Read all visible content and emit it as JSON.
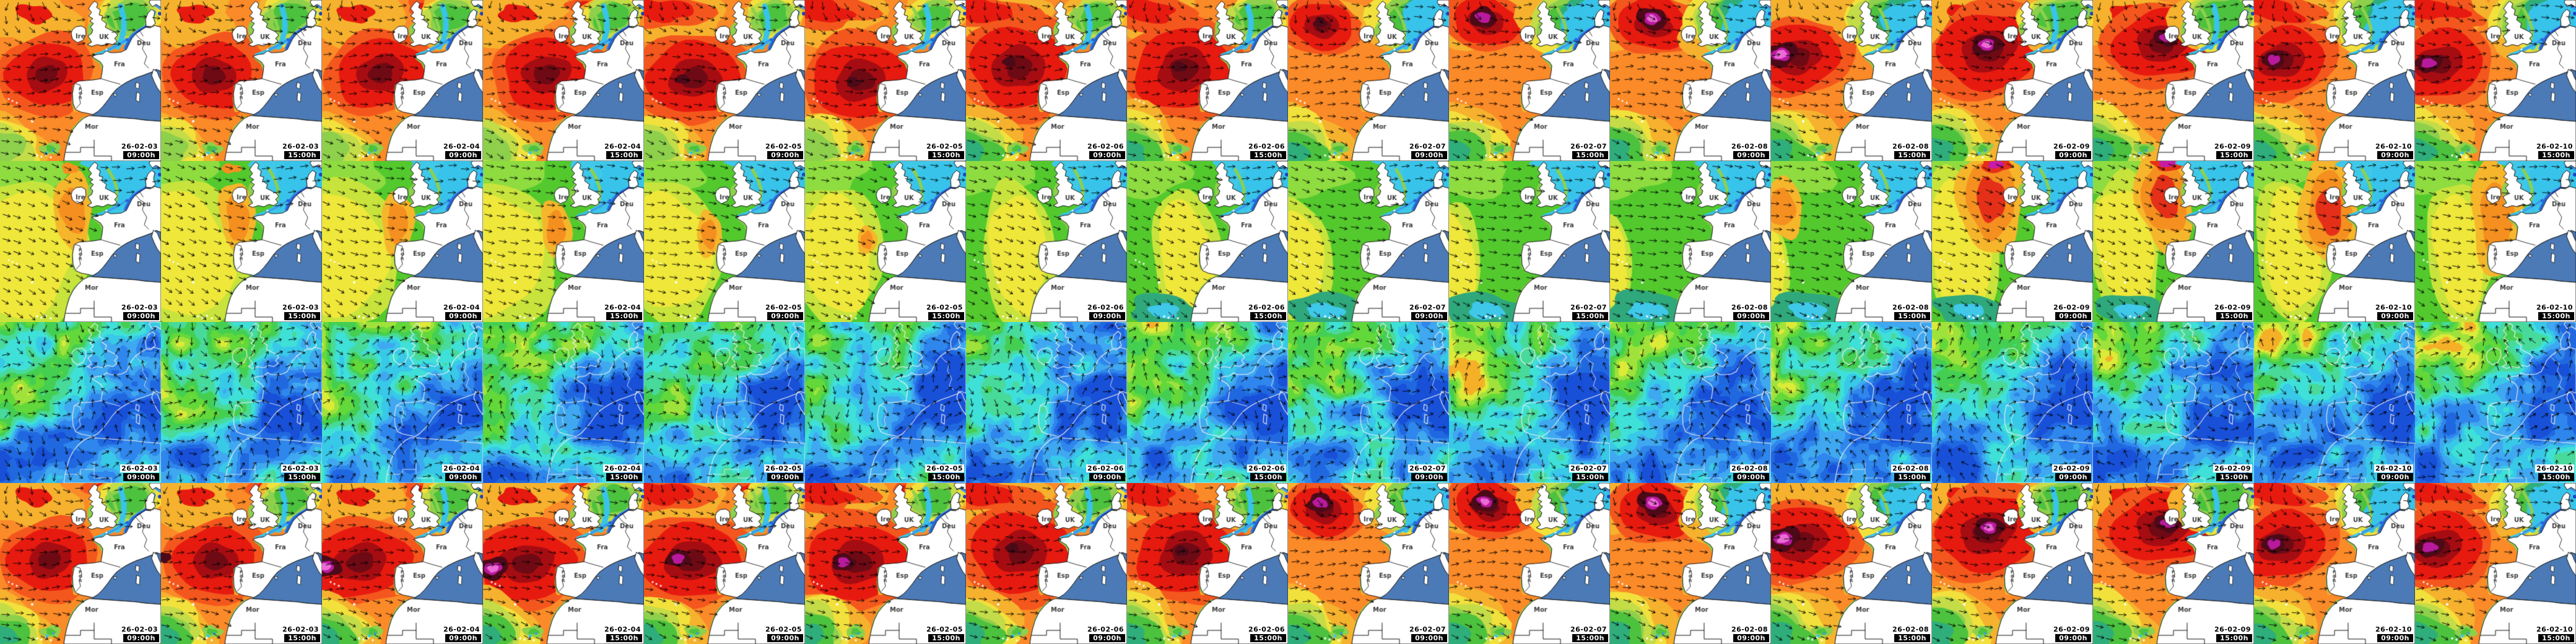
{
  "grid": {
    "tile_size": 260,
    "columns": [
      {
        "date": "26-02-03",
        "time": "09:00h"
      },
      {
        "date": "26-02-03",
        "time": "15:00h"
      },
      {
        "date": "26-02-04",
        "time": "09:00h"
      },
      {
        "date": "26-02-04",
        "time": "15:00h"
      },
      {
        "date": "26-02-05",
        "time": "09:00h"
      },
      {
        "date": "26-02-05",
        "time": "15:00h"
      },
      {
        "date": "26-02-06",
        "time": "09:00h"
      },
      {
        "date": "26-02-06",
        "time": "15:00h"
      },
      {
        "date": "26-02-07",
        "time": "09:00h"
      },
      {
        "date": "26-02-07",
        "time": "15:00h"
      },
      {
        "date": "26-02-08",
        "time": "09:00h"
      },
      {
        "date": "26-02-08",
        "time": "15:00h"
      },
      {
        "date": "26-02-09",
        "time": "09:00h"
      },
      {
        "date": "26-02-09",
        "time": "15:00h"
      },
      {
        "date": "26-02-10",
        "time": "09:00h"
      },
      {
        "date": "26-02-10",
        "time": "15:00h"
      }
    ],
    "rows": [
      {
        "kind": "swell-height-map"
      },
      {
        "kind": "wave-period-map"
      },
      {
        "kind": "wind-map"
      },
      {
        "kind": "swell-height-map-secondary"
      }
    ]
  },
  "map_labels": {
    "ireland": "Ire",
    "uk": "UK",
    "germany": "Deu",
    "france": "Fra",
    "spain": "Esp",
    "portugal": "POR",
    "morocco": "Mor"
  },
  "height_palette": {
    "base": "#fb8a28",
    "amber": "#f6b22e",
    "yellow": "#f2e13c",
    "yellow_green": "#c3dc48",
    "light_green": "#8ed04c",
    "green": "#4cc23e",
    "teal": "#2fae7c",
    "cyan": "#38c4ea",
    "light_blue": "#3f97e8",
    "blue": "#2566d8",
    "dark_blue": "#1b3fc0",
    "orange_red": "#f4571d",
    "red": "#e71a10",
    "dark_red": "#a60d12",
    "maroon": "#6e0a14",
    "dark_maroon": "#4c0a18",
    "magenta": "#b81a9e",
    "pink": "#ee6ad6"
  },
  "period_palette": {
    "base": "#53c92e",
    "light_green": "#8edc40",
    "yellow_green": "#c8e43c",
    "yellow": "#efe73a",
    "amber": "#f6b62c",
    "orange": "#f59020",
    "red": "#e53019",
    "magenta": "#c81ba6",
    "teal": "#2fa87c",
    "cyan": "#3fc8e8",
    "light_blue": "#3f97e8",
    "blue": "#2a78dc"
  },
  "wind_palette": [
    "#1850d8",
    "#2068e0",
    "#2f86ec",
    "#3fa8f0",
    "#38c8e8",
    "#3fe0d8",
    "#48da9a",
    "#44cf52",
    "#63d83a",
    "#9fe23c",
    "#dcea38",
    "#f5b028"
  ],
  "land_color": "#ffffff",
  "mediterranean_color": "#4b7ab6",
  "coastline_color": "#111111",
  "arrow_color": "#000000",
  "country_label_color": "#3d3d3d",
  "timestamp_style": {
    "date_bg": "#ffffff",
    "date_fg": "#000000",
    "time_bg": "#000000",
    "time_fg": "#ffffff"
  }
}
